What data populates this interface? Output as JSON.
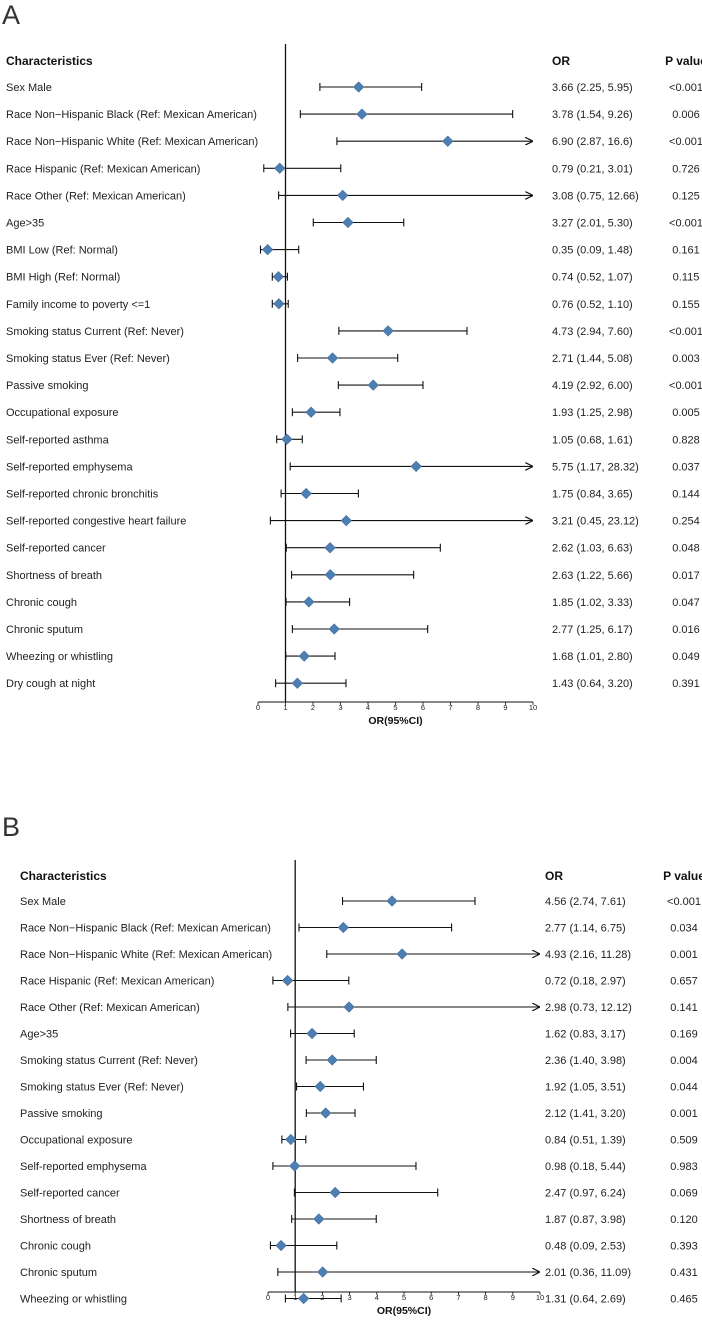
{
  "chart_data": [
    {
      "panel": "A",
      "type": "forest",
      "headers": {
        "characteristics": "Characteristics",
        "or": "OR",
        "p": "P value"
      },
      "xlabel": "OR(95%CI)",
      "xlim": [
        0,
        10
      ],
      "xticks": [
        0,
        1,
        2,
        3,
        4,
        5,
        6,
        7,
        8,
        9,
        10
      ],
      "reference_line": 1,
      "marker_color": "#4d7fb3",
      "rows": [
        {
          "label": "Sex Male",
          "or": 3.66,
          "lo": 2.25,
          "hi": 5.95,
          "or_text": "3.66 (2.25, 5.95)",
          "p": "<0.001"
        },
        {
          "label": "Race Non−Hispanic Black  (Ref: Mexican American)",
          "or": 3.78,
          "lo": 1.54,
          "hi": 9.26,
          "or_text": "3.78 (1.54, 9.26)",
          "p": "0.006"
        },
        {
          "label": "Race Non−Hispanic White (Ref: Mexican American)",
          "or": 6.9,
          "lo": 2.87,
          "hi": 16.6,
          "or_text": "6.90 (2.87, 16.6)",
          "p": "<0.001"
        },
        {
          "label": "Race Hispanic (Ref: Mexican American)",
          "or": 0.79,
          "lo": 0.21,
          "hi": 3.01,
          "or_text": "0.79 (0.21, 3.01)",
          "p": "0.726"
        },
        {
          "label": "Race Other (Ref: Mexican American)",
          "or": 3.08,
          "lo": 0.75,
          "hi": 12.66,
          "or_text": "3.08 (0.75, 12.66)",
          "p": "0.125"
        },
        {
          "label": "Age>35",
          "or": 3.27,
          "lo": 2.01,
          "hi": 5.3,
          "or_text": "3.27 (2.01, 5.30)",
          "p": "<0.001"
        },
        {
          "label": "BMI Low (Ref: Normal)",
          "or": 0.35,
          "lo": 0.09,
          "hi": 1.48,
          "or_text": "0.35 (0.09, 1.48)",
          "p": "0.161"
        },
        {
          "label": "BMI High (Ref: Normal)",
          "or": 0.74,
          "lo": 0.52,
          "hi": 1.07,
          "or_text": "0.74 (0.52, 1.07)",
          "p": "0.115"
        },
        {
          "label": "Family income to poverty <=1",
          "or": 0.76,
          "lo": 0.52,
          "hi": 1.1,
          "or_text": "0.76 (0.52, 1.10)",
          "p": "0.155"
        },
        {
          "label": "Smoking status Current (Ref: Never)",
          "or": 4.73,
          "lo": 2.94,
          "hi": 7.6,
          "or_text": "4.73 (2.94, 7.60)",
          "p": "<0.001"
        },
        {
          "label": "Smoking status Ever (Ref: Never)",
          "or": 2.71,
          "lo": 1.44,
          "hi": 5.08,
          "or_text": "2.71 (1.44, 5.08)",
          "p": "0.003"
        },
        {
          "label": "Passive smoking",
          "or": 4.19,
          "lo": 2.92,
          "hi": 6.0,
          "or_text": "4.19 (2.92, 6.00)",
          "p": "<0.001"
        },
        {
          "label": "Occupational exposure",
          "or": 1.93,
          "lo": 1.25,
          "hi": 2.98,
          "or_text": "1.93 (1.25, 2.98)",
          "p": "0.005"
        },
        {
          "label": "Self-reported asthma",
          "or": 1.05,
          "lo": 0.68,
          "hi": 1.61,
          "or_text": "1.05 (0.68, 1.61)",
          "p": "0.828"
        },
        {
          "label": "Self-reported emphysema",
          "or": 5.75,
          "lo": 1.17,
          "hi": 28.32,
          "or_text": "5.75 (1.17, 28.32)",
          "p": "0.037"
        },
        {
          "label": "Self-reported chronic bronchitis",
          "or": 1.75,
          "lo": 0.84,
          "hi": 3.65,
          "or_text": "1.75 (0.84, 3.65)",
          "p": "0.144"
        },
        {
          "label": "Self-reported congestive heart failure",
          "or": 3.21,
          "lo": 0.45,
          "hi": 23.12,
          "or_text": "3.21 (0.45, 23.12)",
          "p": "0.254"
        },
        {
          "label": "Self-reported cancer",
          "or": 2.62,
          "lo": 1.03,
          "hi": 6.63,
          "or_text": "2.62 (1.03, 6.63)",
          "p": "0.048"
        },
        {
          "label": "Shortness of breath",
          "or": 2.63,
          "lo": 1.22,
          "hi": 5.66,
          "or_text": "2.63 (1.22, 5.66)",
          "p": "0.017"
        },
        {
          "label": "Chronic cough",
          "or": 1.85,
          "lo": 1.02,
          "hi": 3.33,
          "or_text": "1.85 (1.02, 3.33)",
          "p": "0.047"
        },
        {
          "label": "Chronic sputum",
          "or": 2.77,
          "lo": 1.25,
          "hi": 6.17,
          "or_text": "2.77 (1.25, 6.17)",
          "p": "0.016"
        },
        {
          "label": "Wheezing or whistling",
          "or": 1.68,
          "lo": 1.01,
          "hi": 2.8,
          "or_text": "1.68 (1.01, 2.80)",
          "p": "0.049"
        },
        {
          "label": "Dry cough at night",
          "or": 1.43,
          "lo": 0.64,
          "hi": 3.2,
          "or_text": "1.43 (0.64, 3.20)",
          "p": "0.391"
        }
      ]
    },
    {
      "panel": "B",
      "type": "forest",
      "headers": {
        "characteristics": "Characteristics",
        "or": "OR",
        "p": "P value"
      },
      "xlabel": "OR(95%CI)",
      "xlim": [
        0,
        10
      ],
      "xticks": [
        0,
        1,
        2,
        3,
        4,
        5,
        6,
        7,
        8,
        9,
        10
      ],
      "reference_line": 1,
      "marker_color": "#4d7fb3",
      "rows": [
        {
          "label": "Sex Male",
          "or": 4.56,
          "lo": 2.74,
          "hi": 7.61,
          "or_text": "4.56 (2.74, 7.61)",
          "p": "<0.001"
        },
        {
          "label": "Race Non−Hispanic Black  (Ref: Mexican American)",
          "or": 2.77,
          "lo": 1.14,
          "hi": 6.75,
          "or_text": "2.77 (1.14, 6.75)",
          "p": "0.034"
        },
        {
          "label": "Race Non−Hispanic White  (Ref: Mexican American)",
          "or": 4.93,
          "lo": 2.16,
          "hi": 11.28,
          "or_text": "4.93 (2.16, 11.28)",
          "p": "0.001"
        },
        {
          "label": "Race Hispanic  (Ref: Mexican American)",
          "or": 0.72,
          "lo": 0.18,
          "hi": 2.97,
          "or_text": "0.72 (0.18, 2.97)",
          "p": "0.657"
        },
        {
          "label": "Race Other (Ref: Mexican American)",
          "or": 2.98,
          "lo": 0.73,
          "hi": 12.12,
          "or_text": "2.98 (0.73, 12.12)",
          "p": "0.141"
        },
        {
          "label": "Age>35",
          "or": 1.62,
          "lo": 0.83,
          "hi": 3.17,
          "or_text": "1.62 (0.83, 3.17)",
          "p": "0.169"
        },
        {
          "label": "Smoking status Current (Ref: Never)",
          "or": 2.36,
          "lo": 1.4,
          "hi": 3.98,
          "or_text": "2.36 (1.40, 3.98)",
          "p": "0.004"
        },
        {
          "label": "Smoking status Ever (Ref: Never)",
          "or": 1.92,
          "lo": 1.05,
          "hi": 3.51,
          "or_text": "1.92 (1.05, 3.51)",
          "p": "0.044"
        },
        {
          "label": "Passive smoking",
          "or": 2.12,
          "lo": 1.41,
          "hi": 3.2,
          "or_text": "2.12 (1.41, 3.20)",
          "p": "0.001"
        },
        {
          "label": "Occupational exposure",
          "or": 0.84,
          "lo": 0.51,
          "hi": 1.39,
          "or_text": "0.84 (0.51, 1.39)",
          "p": "0.509"
        },
        {
          "label": "Self-reported emphysema",
          "or": 0.98,
          "lo": 0.18,
          "hi": 5.44,
          "or_text": "0.98 (0.18, 5.44)",
          "p": "0.983"
        },
        {
          "label": "Self-reported cancer",
          "or": 2.47,
          "lo": 0.97,
          "hi": 6.24,
          "or_text": "2.47 (0.97, 6.24)",
          "p": "0.069"
        },
        {
          "label": "Shortness of breath",
          "or": 1.87,
          "lo": 0.87,
          "hi": 3.98,
          "or_text": "1.87 (0.87, 3.98)",
          "p": "0.120"
        },
        {
          "label": "Chronic cough",
          "or": 0.48,
          "lo": 0.09,
          "hi": 2.53,
          "or_text": "0.48 (0.09, 2.53)",
          "p": "0.393"
        },
        {
          "label": "Chronic sputum",
          "or": 2.01,
          "lo": 0.36,
          "hi": 11.09,
          "or_text": "2.01 (0.36, 11.09)",
          "p": "0.431"
        },
        {
          "label": "Wheezing or whistling",
          "or": 1.31,
          "lo": 0.64,
          "hi": 2.69,
          "or_text": "1.31 (0.64, 2.69)",
          "p": "0.465"
        }
      ]
    }
  ]
}
